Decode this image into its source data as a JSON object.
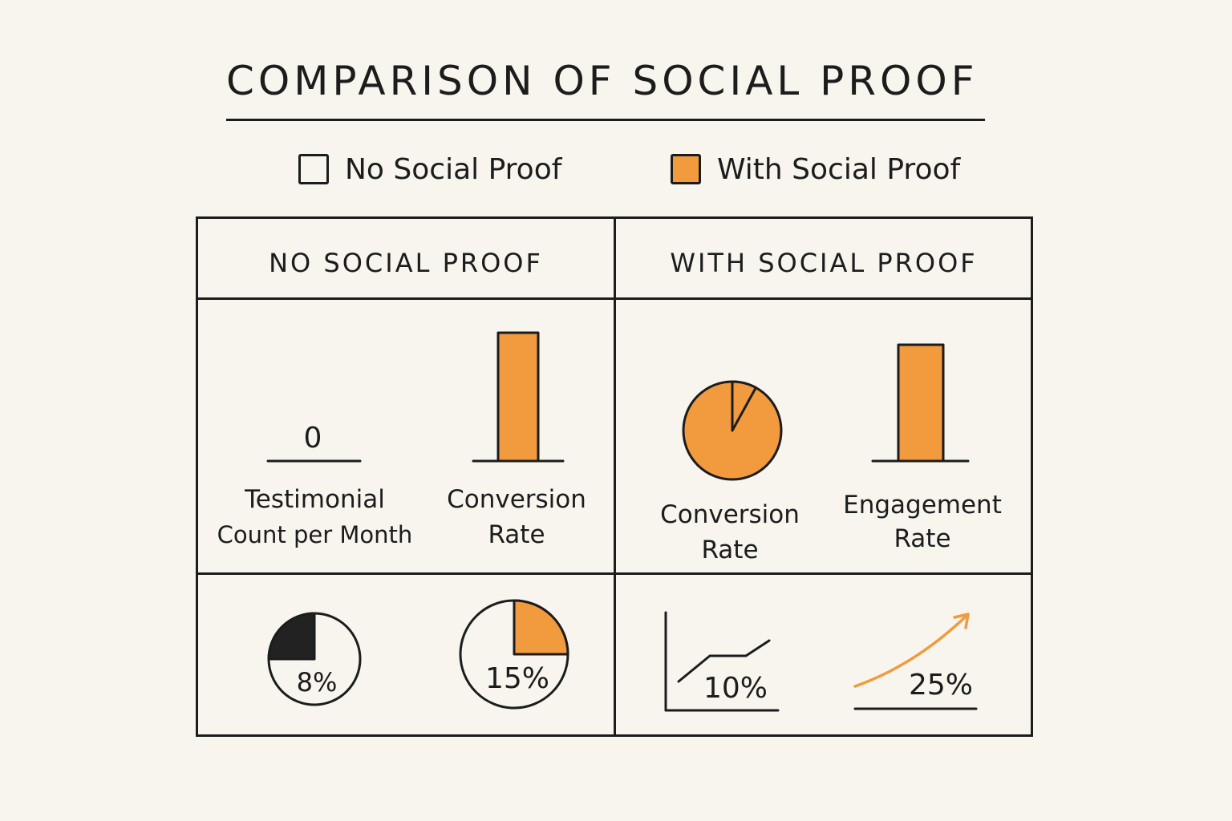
{
  "title": "Comparison of Social Proof",
  "colors": {
    "accent": "#f19a3e",
    "ink": "#1c1c1c",
    "dark": "#222222",
    "paper": "#f8f5ee"
  },
  "legend": [
    {
      "label": "No Social Proof",
      "fill": "none"
    },
    {
      "label": "With Social Proof",
      "fill": "#f19a3e"
    }
  ],
  "columns": [
    {
      "heading": "No Social Proof"
    },
    {
      "heading": "With Social Proof"
    }
  ],
  "chart_data": [
    {
      "panel": "no-social-proof-top",
      "type": "bar",
      "items": [
        {
          "value_label": "0",
          "label_lines": [
            "Testimonial",
            "Count per Month"
          ],
          "value": 0
        },
        {
          "value_label": "",
          "label_lines": [
            "Conversion",
            "Rate"
          ],
          "value": 1
        }
      ]
    },
    {
      "panel": "with-social-proof-top",
      "type": "pie",
      "items": [
        {
          "value_label": "8%",
          "label_lines": [
            "Conversion",
            "Rate"
          ],
          "value": 8
        }
      ]
    },
    {
      "panel": "with-social-proof-top-bar",
      "type": "bar",
      "items": [
        {
          "value_label": "",
          "label_lines": [
            "Engagement",
            "Rate"
          ],
          "value": 1
        }
      ]
    },
    {
      "panel": "no-social-proof-bottom",
      "type": "pie",
      "items": [
        {
          "value_label": "8%",
          "value": 8,
          "color": "#222222"
        },
        {
          "value_label": "15%",
          "value": 15,
          "color": "#f19a3e"
        }
      ]
    },
    {
      "panel": "with-social-proof-bottom",
      "type": "line",
      "items": [
        {
          "value_label": "10%",
          "value": 10
        },
        {
          "value_label": "25%",
          "value": 25
        }
      ]
    }
  ]
}
